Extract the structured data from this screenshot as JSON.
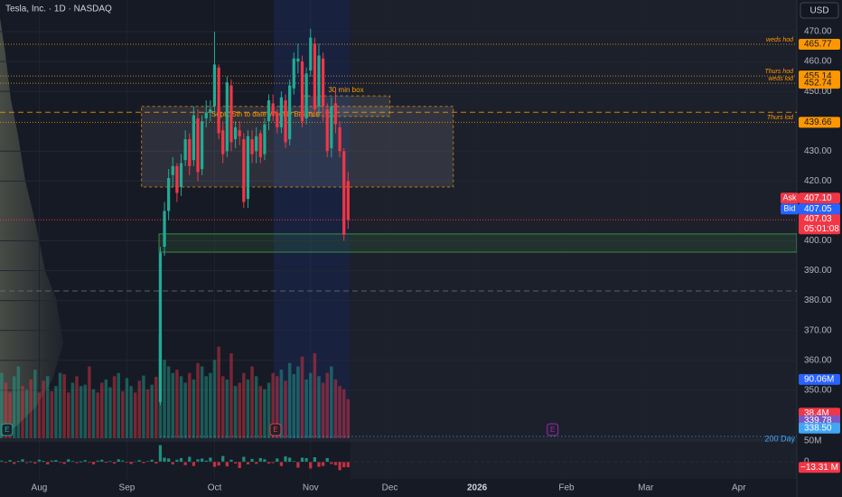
{
  "chart_data": {
    "type": "candlestick",
    "title": "Tesla, Inc. · 1D · NASDAQ",
    "currency": "USD",
    "up_color": "#22ab94",
    "down_color": "#f23645",
    "xlim": [
      -0.4,
      190.5
    ],
    "ylim": [
      333.9,
      480.6
    ],
    "xticks": [
      {
        "value": 9,
        "label": "Aug"
      },
      {
        "value": 30,
        "label": "Sep"
      },
      {
        "value": 51,
        "label": "Oct"
      },
      {
        "value": 74,
        "label": "Nov"
      },
      {
        "value": 93,
        "label": "Dec"
      },
      {
        "value": 113.9,
        "label": "2026"
      },
      {
        "value": 135.3,
        "label": "Feb"
      },
      {
        "value": 154.3,
        "label": "Mar"
      },
      {
        "value": 176.6,
        "label": "Apr"
      }
    ],
    "yticks": [
      {
        "value": 470,
        "label": "470.00"
      },
      {
        "value": 460,
        "label": "460.00"
      },
      {
        "value": 450,
        "label": "450.00"
      },
      {
        "value": 430,
        "label": "430.00"
      },
      {
        "value": 420,
        "label": "420.00"
      },
      {
        "value": 400,
        "label": "400.00"
      },
      {
        "value": 390,
        "label": "390.00"
      },
      {
        "value": 380,
        "label": "380.00"
      },
      {
        "value": 370,
        "label": "370.00"
      },
      {
        "value": 360,
        "label": "360.00"
      },
      {
        "value": 350,
        "label": "350.00"
      }
    ],
    "grid": true,
    "candles": {
      "x": [
        38,
        39,
        40,
        41,
        42,
        43,
        44,
        45,
        46,
        47,
        48,
        49,
        50,
        51,
        52,
        53,
        54,
        55,
        56,
        57,
        58,
        59,
        60,
        61,
        62,
        63,
        64,
        65,
        66,
        67,
        68,
        69,
        70,
        71,
        72,
        73,
        74,
        75,
        76,
        77,
        78,
        79,
        80,
        81,
        82,
        83
      ],
      "open": [
        346,
        398,
        410,
        422,
        425,
        418,
        427,
        434,
        427,
        441,
        424,
        441,
        443,
        445,
        458,
        437,
        430,
        452,
        434,
        437,
        434,
        414,
        434,
        430,
        436,
        429,
        440,
        446,
        443,
        438,
        447,
        434,
        451,
        460,
        460,
        441,
        457,
        466,
        445,
        461,
        444,
        431,
        446,
        438,
        430,
        420
      ],
      "high": [
        398,
        413,
        424,
        428,
        426,
        429,
        437,
        436,
        445,
        444,
        442,
        447,
        447,
        470,
        459,
        440,
        455,
        454,
        440,
        440,
        436,
        437,
        437,
        438,
        437,
        441,
        449,
        449,
        444,
        450,
        449,
        454,
        463,
        466,
        462,
        458,
        471,
        468,
        466,
        463,
        446,
        448,
        450,
        440,
        431,
        423
      ],
      "low": [
        345,
        395,
        407,
        418,
        413,
        415,
        425,
        422,
        425,
        420,
        422,
        438,
        440,
        442,
        434,
        426,
        428,
        430,
        431,
        432,
        411,
        411,
        426,
        426,
        426,
        427,
        437,
        440,
        436,
        436,
        431,
        432,
        449,
        456,
        438,
        439,
        455,
        442,
        442,
        440,
        428,
        428,
        436,
        428,
        400,
        404
      ],
      "close": [
        396,
        410,
        421,
        425,
        416,
        426,
        434,
        425,
        442,
        423,
        440,
        443,
        444,
        459,
        436,
        429,
        453,
        433,
        438,
        435,
        413,
        435,
        429,
        435,
        428,
        439,
        447,
        442,
        438,
        448,
        433,
        452,
        461,
        461,
        440,
        456,
        468,
        444,
        462,
        445,
        430,
        445,
        439,
        430,
        402,
        407
      ]
    },
    "volume": {
      "ylim": [
        0,
        130
      ],
      "values": [
        100,
        85,
        70,
        95,
        110,
        80,
        75,
        90,
        105,
        70,
        88,
        95,
        72,
        80,
        100,
        98,
        70,
        85,
        95,
        80,
        82,
        110,
        75,
        70,
        85,
        90,
        78,
        95,
        100,
        72,
        92,
        80,
        70,
        88,
        96,
        75,
        82,
        94,
        160,
        120,
        110,
        100,
        105,
        95,
        85,
        100,
        90,
        115,
        110,
        95,
        100,
        120,
        140,
        95,
        90,
        130,
        80,
        85,
        100,
        90,
        110,
        95,
        80,
        75,
        85,
        100,
        95,
        105,
        88,
        115,
        98,
        110,
        125,
        90,
        100,
        130,
        95,
        85,
        100,
        110,
        90,
        80,
        75,
        60
      ],
      "up": [
        1,
        0,
        0,
        1,
        1,
        0,
        1,
        0,
        1,
        0,
        0,
        1,
        0,
        1,
        1,
        0,
        0,
        1,
        0,
        1,
        1,
        0,
        1,
        0,
        0,
        1,
        1,
        0,
        1,
        0,
        1,
        1,
        0,
        0,
        1,
        0,
        1,
        0,
        1,
        1,
        1,
        1,
        0,
        1,
        1,
        0,
        1,
        0,
        1,
        1,
        1,
        1,
        0,
        0,
        1,
        0,
        1,
        0,
        0,
        1,
        0,
        1,
        0,
        1,
        1,
        0,
        0,
        1,
        0,
        1,
        1,
        1,
        0,
        1,
        1,
        0,
        1,
        0,
        0,
        1,
        0,
        0,
        0,
        0
      ],
      "tags": [
        {
          "value": 90.06,
          "label": "90.06M",
          "color": "#2962ff"
        },
        {
          "value": 38.4,
          "label": "38.4M",
          "color": "#f23645"
        }
      ]
    },
    "oscillator": {
      "ylim": [
        -41,
        56.5
      ],
      "yticks": [
        {
          "value": 50,
          "label": "50M"
        },
        0
      ],
      "values": [
        3,
        -2,
        4,
        -5,
        2,
        6,
        -3,
        1,
        -4,
        5,
        2,
        -6,
        3,
        4,
        -2,
        -5,
        6,
        2,
        -3,
        1,
        4,
        -2,
        -6,
        3,
        5,
        -1,
        2,
        -4,
        6,
        3,
        -2,
        -5,
        1,
        4,
        -3,
        2,
        5,
        -4,
        40,
        10,
        8,
        -6,
        5,
        9,
        -8,
        12,
        -10,
        6,
        8,
        3,
        10,
        -12,
        -9,
        14,
        -11,
        5,
        -4,
        -15,
        12,
        -6,
        7,
        -5,
        9,
        6,
        -4,
        -3,
        8,
        -10,
        13,
        10,
        2,
        -14,
        10,
        9,
        -16,
        11,
        -12,
        -10,
        9,
        -5,
        -8,
        -20,
        -13,
        -13
      ],
      "tag": {
        "value": -13.31,
        "label": "−13.31 M",
        "color": "#f23645"
      }
    },
    "price_levels": [
      {
        "name": "weds hod",
        "value": 465.77
      },
      {
        "name": "Thurs hod",
        "value": 455.14
      },
      {
        "name": "weds lod",
        "value": 452.74
      },
      {
        "name": "Thurs lod",
        "value": 439.66
      }
    ],
    "ma_tags": [
      {
        "value": 339.78,
        "color": "#7e57c2"
      },
      {
        "value": 338.5,
        "label": "338.50",
        "color": "#42a5f5"
      }
    ],
    "quote": {
      "ask": {
        "name": "Ask",
        "value": 407.1,
        "label": "407.10"
      },
      "bid": {
        "name": "Bid",
        "value": 407.05
      },
      "last": {
        "value": 407.03,
        "countdown": "05:01:08"
      }
    },
    "zones": [
      {
        "name": "Sept 15th to date Weekly Balance",
        "x": [
          33.5,
          108.2
        ],
        "y": [
          418,
          445
        ],
        "color": "#c8c8c8"
      },
      {
        "name": "30 min box",
        "x": [
          72,
          93
        ],
        "y": [
          441.6,
          448.5
        ],
        "color": "#c8c8c8"
      },
      {
        "x": [
          37.7,
          190.5
        ],
        "y": [
          396.2,
          402.3
        ],
        "color": "#4caf50"
      }
    ],
    "lines": [
      {
        "value": 443,
        "color": "#ff9800"
      },
      {
        "value": 383.2,
        "color": "#6b6f7a"
      }
    ],
    "events": [
      {
        "x": 1.3,
        "label": "E",
        "color": "#26a69a"
      },
      {
        "x": 65.6,
        "label": "E",
        "color": "#f23645"
      },
      {
        "x": 132,
        "label": "E",
        "color": "#9c27b0"
      }
    ],
    "ma_label": "200 Day"
  }
}
